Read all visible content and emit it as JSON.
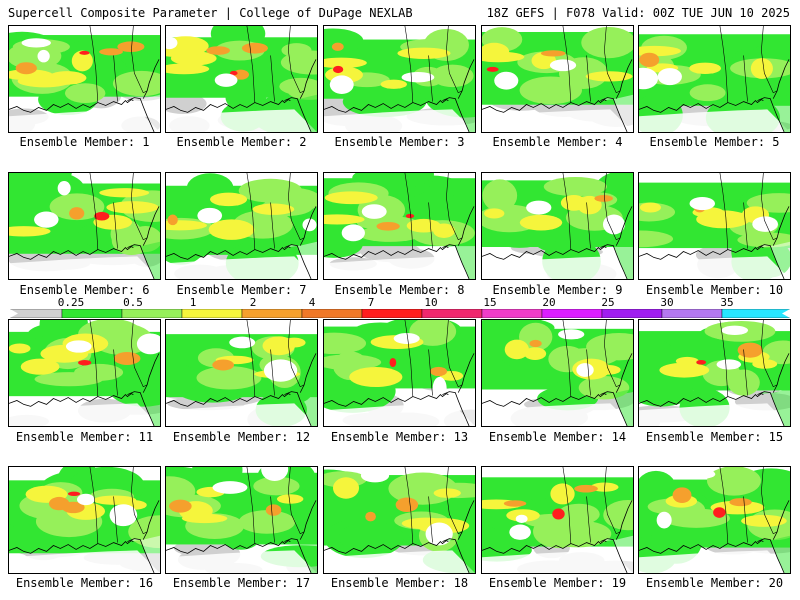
{
  "header": {
    "title": "Supercell Composite Parameter | College of DuPage NEXLAB",
    "run_info": "18Z GEFS | F078 Valid: 00Z TUE JUN 10 2025"
  },
  "colorbar": {
    "ticks": [
      "0.25",
      "0.5",
      "1",
      "2",
      "4",
      "7",
      "10",
      "15",
      "20",
      "25",
      "30",
      "35"
    ],
    "colors": [
      "#d0d0d0",
      "#32e632",
      "#96f05a",
      "#f5f53c",
      "#f5a02d",
      "#f07828",
      "#ff1e1e",
      "#f0286e",
      "#f03cc8",
      "#dc1eff",
      "#a01ef0",
      "#b478f0",
      "#28e6ff"
    ]
  },
  "panels": [
    {
      "label": "Ensemble Member: 1"
    },
    {
      "label": "Ensemble Member: 2"
    },
    {
      "label": "Ensemble Member: 3"
    },
    {
      "label": "Ensemble Member: 4"
    },
    {
      "label": "Ensemble Member: 5"
    },
    {
      "label": "Ensemble Member: 6"
    },
    {
      "label": "Ensemble Member: 7"
    },
    {
      "label": "Ensemble Member: 8"
    },
    {
      "label": "Ensemble Member: 9"
    },
    {
      "label": "Ensemble Member: 10"
    },
    {
      "label": "Ensemble Member: 11"
    },
    {
      "label": "Ensemble Member: 12"
    },
    {
      "label": "Ensemble Member: 13"
    },
    {
      "label": "Ensemble Member: 14"
    },
    {
      "label": "Ensemble Member: 15"
    },
    {
      "label": "Ensemble Member: 16"
    },
    {
      "label": "Ensemble Member: 17"
    },
    {
      "label": "Ensemble Member: 18"
    },
    {
      "label": "Ensemble Member: 19"
    },
    {
      "label": "Ensemble Member: 20"
    }
  ]
}
